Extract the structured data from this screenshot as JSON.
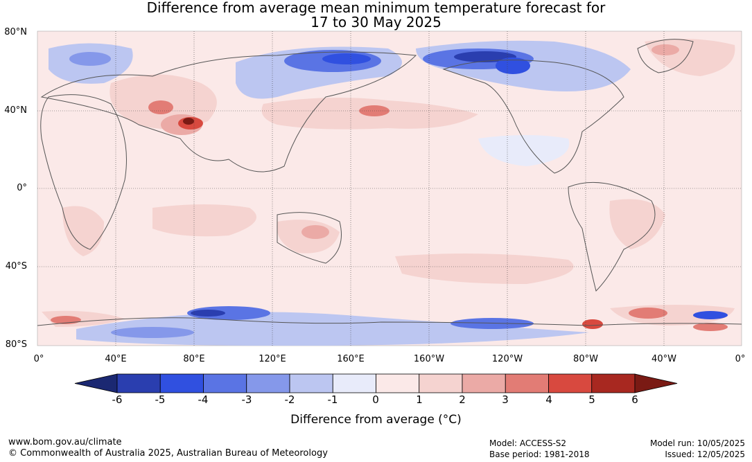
{
  "title": {
    "line1": "Difference from average mean minimum temperature forecast for",
    "line2": "17 to 30 May 2025"
  },
  "map": {
    "lat_labels": [
      "80°N",
      "40°N",
      "0°",
      "40°S",
      "80°S"
    ],
    "lon_labels": [
      "0°",
      "40°E",
      "80°E",
      "120°E",
      "160°E",
      "160°W",
      "120°W",
      "80°W",
      "40°W",
      "0°"
    ]
  },
  "colorbar": {
    "ticks": [
      "-6",
      "-5",
      "-4",
      "-3",
      "-2",
      "-1",
      "0",
      "1",
      "2",
      "3",
      "4",
      "5",
      "6"
    ],
    "colors": [
      "#1b2872",
      "#2a3eaf",
      "#3050e0",
      "#5a74e4",
      "#8598ea",
      "#bcc6f1",
      "#e8ebfa",
      "#fbe9e8",
      "#f5d3d0",
      "#ebaaa6",
      "#e27c75",
      "#d8493f",
      "#a82820",
      "#7a1a14"
    ],
    "label": "Difference from average (°C)"
  },
  "footer": {
    "url": "www.bom.gov.au/climate",
    "copyright": "© Commonwealth of Australia 2025, Australian Bureau of Meteorology",
    "model": "Model: ACCESS-S2",
    "base_period": "Base period: 1981-2018",
    "model_run": "Model run: 10/05/2025",
    "issued": "Issued: 12/05/2025"
  }
}
